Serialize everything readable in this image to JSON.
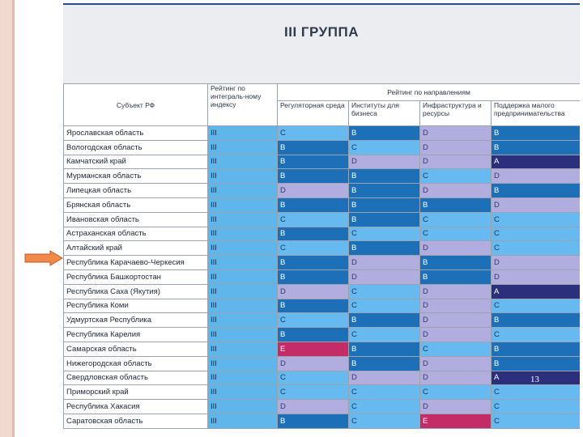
{
  "slide": {
    "title": "III ГРУППА",
    "page_number": "13"
  },
  "colors": {
    "A": "#2c2f7c",
    "B": "#1d6fb7",
    "C": "#67baf0",
    "D": "#b2addf",
    "E": "#c42c68",
    "arrow_fill": "#f08a4b",
    "arrow_stroke": "#c25b25"
  },
  "table": {
    "header": {
      "subject": "Субъект РФ",
      "integral": "Рейтинг по интеграль-ному индексу",
      "group": "Рейтинг по направлениям",
      "columns": [
        "Регуляторная среда",
        "Институты для бизнеса",
        "Инфраструктура и ресурсы",
        "Поддержка малого предпринимательства"
      ]
    },
    "rows": [
      {
        "region": "Ярославская область",
        "integral": "III",
        "grades": [
          "C",
          "B",
          "D",
          "B"
        ]
      },
      {
        "region": "Вологодская область",
        "integral": "III",
        "grades": [
          "B",
          "C",
          "D",
          "B"
        ]
      },
      {
        "region": "Камчатский край",
        "integral": "III",
        "grades": [
          "B",
          "D",
          "D",
          "A"
        ]
      },
      {
        "region": "Мурманская область",
        "integral": "III",
        "grades": [
          "B",
          "B",
          "C",
          "D"
        ]
      },
      {
        "region": "Липецкая область",
        "integral": "III",
        "grades": [
          "D",
          "B",
          "D",
          "B"
        ]
      },
      {
        "region": "Брянская область",
        "integral": "III",
        "grades": [
          "B",
          "B",
          "B",
          "D"
        ]
      },
      {
        "region": "Ивановская область",
        "integral": "III",
        "grades": [
          "C",
          "B",
          "C",
          "C"
        ]
      },
      {
        "region": "Астраханская область",
        "integral": "III",
        "grades": [
          "B",
          "C",
          "C",
          "C"
        ]
      },
      {
        "region": "Алтайский край",
        "integral": "III",
        "grades": [
          "C",
          "B",
          "D",
          "C"
        ]
      },
      {
        "region": "Республика Карачаево-Черкесия",
        "integral": "III",
        "grades": [
          "B",
          "D",
          "B",
          "D"
        ]
      },
      {
        "region": "Республика Башкортостан",
        "integral": "III",
        "grades": [
          "B",
          "D",
          "B",
          "D"
        ]
      },
      {
        "region": "Республика Саха (Якутия)",
        "integral": "III",
        "grades": [
          "D",
          "C",
          "D",
          "A"
        ]
      },
      {
        "region": "Республика Коми",
        "integral": "III",
        "grades": [
          "B",
          "C",
          "D",
          "C"
        ]
      },
      {
        "region": "Удмуртская Республика",
        "integral": "III",
        "grades": [
          "C",
          "B",
          "D",
          "B"
        ]
      },
      {
        "region": "Республика Карелия",
        "integral": "III",
        "grades": [
          "B",
          "C",
          "D",
          "C"
        ]
      },
      {
        "region": "Самарская область",
        "integral": "III",
        "grades": [
          "E",
          "B",
          "C",
          "B"
        ]
      },
      {
        "region": "Нижегородская область",
        "integral": "III",
        "grades": [
          "D",
          "B",
          "D",
          "B"
        ]
      },
      {
        "region": "Свердловская область",
        "integral": "III",
        "grades": [
          "C",
          "D",
          "D",
          "A"
        ]
      },
      {
        "region": "Приморский край",
        "integral": "III",
        "grades": [
          "C",
          "C",
          "C",
          "C"
        ]
      },
      {
        "region": "Республика Хакасия",
        "integral": "III",
        "grades": [
          "D",
          "C",
          "D",
          "C"
        ]
      },
      {
        "region": "Саратовская область",
        "integral": "III",
        "grades": [
          "B",
          "C",
          "E",
          "C"
        ]
      }
    ]
  }
}
